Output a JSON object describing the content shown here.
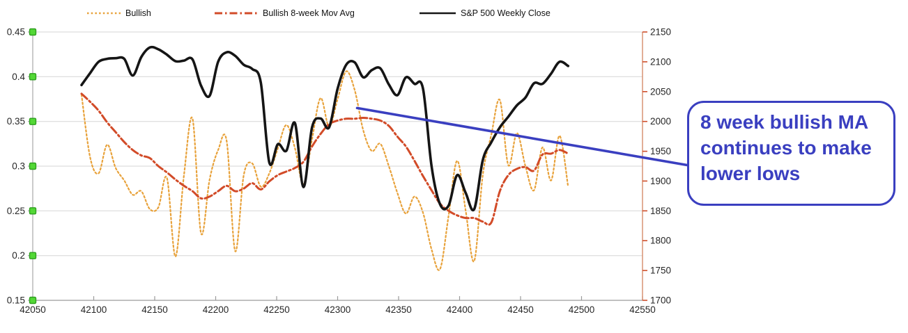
{
  "legend": [
    {
      "label": "Bullish",
      "color": "#E8A23B",
      "style": "dotted"
    },
    {
      "label": "Bullish 8-week Mov Avg",
      "color": "#D24B28",
      "style": "dash-dot"
    },
    {
      "label": "S&P 500 Weekly Close",
      "color": "#151515",
      "style": "solid"
    }
  ],
  "annotation": {
    "text": "8 week bullish MA continues to make lower lows",
    "color": "#3A3FC0",
    "points_at": {
      "x": 42316,
      "left_value": 0.365
    }
  },
  "chart_data": {
    "type": "line",
    "title": "",
    "xlabel": "",
    "ylabel_left": "",
    "ylabel_right": "",
    "grid": "horizontal",
    "legend_position": "top",
    "x_axis": {
      "min": 42050,
      "max": 42550,
      "ticks": [
        42050,
        42100,
        42150,
        42200,
        42250,
        42300,
        42350,
        42400,
        42450,
        42500,
        42550
      ],
      "tick_labels": [
        "42050",
        "42100",
        "42150",
        "42200",
        "42250",
        "42300",
        "42350",
        "42400",
        "42450",
        "42500",
        "42550"
      ]
    },
    "left_axis": {
      "min": 0.15,
      "max": 0.45,
      "ticks": [
        0.45,
        0.4,
        0.35,
        0.3,
        0.25,
        0.2,
        0.15
      ],
      "tick_labels": [
        "0.45",
        "0.4",
        "0.35",
        "0.3",
        "0.25",
        "0.2",
        "0.15"
      ],
      "marker": "green-square",
      "marker_fill": "#53D836",
      "marker_stroke": "#2E9E1F"
    },
    "right_axis": {
      "min": 1700,
      "max": 2150,
      "ticks": [
        2150,
        2100,
        2050,
        2000,
        1950,
        1900,
        1850,
        1800,
        1750,
        1700
      ],
      "tick_labels": [
        "2150",
        "2100",
        "2050",
        "2000",
        "1950",
        "1900",
        "1850",
        "1800",
        "1750",
        "1700"
      ],
      "line_color": "#D2825F",
      "tick_color": "#CF4E2B"
    },
    "x": [
      42090,
      42097,
      42104,
      42111,
      42118,
      42125,
      42132,
      42139,
      42146,
      42153,
      42160,
      42167,
      42174,
      42181,
      42188,
      42195,
      42202,
      42209,
      42216,
      42223,
      42230,
      42237,
      42244,
      42251,
      42258,
      42265,
      42272,
      42279,
      42286,
      42293,
      42300,
      42307,
      42314,
      42321,
      42328,
      42335,
      42342,
      42349,
      42356,
      42363,
      42370,
      42377,
      42384,
      42391,
      42398,
      42405,
      42412,
      42419,
      42426,
      42433,
      42440,
      42447,
      42454,
      42461,
      42468,
      42475,
      42482,
      42489
    ],
    "series": [
      {
        "name": "Bullish",
        "axis": "left",
        "color": "#E8A23B",
        "style": "dotted",
        "width": 2.2,
        "values": [
          0.38,
          0.31,
          0.292,
          0.324,
          0.298,
          0.284,
          0.268,
          0.272,
          0.252,
          0.254,
          0.287,
          0.199,
          0.29,
          0.353,
          0.225,
          0.285,
          0.318,
          0.328,
          0.205,
          0.29,
          0.303,
          0.277,
          0.292,
          0.32,
          0.346,
          0.32,
          0.28,
          0.33,
          0.376,
          0.344,
          0.375,
          0.406,
          0.385,
          0.34,
          0.317,
          0.325,
          0.3,
          0.27,
          0.247,
          0.266,
          0.248,
          0.207,
          0.185,
          0.245,
          0.306,
          0.25,
          0.194,
          0.29,
          0.335,
          0.374,
          0.301,
          0.337,
          0.3,
          0.273,
          0.321,
          0.284,
          0.334,
          0.277
        ]
      },
      {
        "name": "Bullish 8-week Mov Avg",
        "axis": "left",
        "color": "#D24B28",
        "style": "dash-dot",
        "width": 3,
        "values": [
          0.381,
          0.372,
          0.362,
          0.349,
          0.338,
          0.327,
          0.318,
          0.312,
          0.309,
          0.3,
          0.293,
          0.285,
          0.278,
          0.272,
          0.264,
          0.266,
          0.272,
          0.278,
          0.272,
          0.275,
          0.281,
          0.274,
          0.283,
          0.29,
          0.294,
          0.298,
          0.305,
          0.322,
          0.336,
          0.347,
          0.351,
          0.353,
          0.353,
          0.354,
          0.353,
          0.351,
          0.345,
          0.333,
          0.322,
          0.306,
          0.289,
          0.273,
          0.258,
          0.25,
          0.245,
          0.242,
          0.242,
          0.238,
          0.237,
          0.272,
          0.29,
          0.297,
          0.299,
          0.295,
          0.313,
          0.314,
          0.318,
          0.314
        ]
      },
      {
        "name": "S&P 500 Weekly Close",
        "axis": "right",
        "color": "#151515",
        "style": "solid",
        "width": 3.6,
        "values": [
          2061,
          2081,
          2100,
          2105,
          2106,
          2105,
          2077,
          2108,
          2124,
          2121,
          2112,
          2101,
          2102,
          2104,
          2060,
          2043,
          2100,
          2116,
          2110,
          2095,
          2088,
          2065,
          1931,
          1962,
          1951,
          1997,
          1890,
          1990,
          2005,
          1990,
          2055,
          2095,
          2099,
          2074,
          2086,
          2089,
          2062,
          2044,
          2074,
          2063,
          2055,
          1925,
          1861,
          1859,
          1910,
          1880,
          1853,
          1935,
          1965,
          1990,
          2008,
          2027,
          2040,
          2064,
          2063,
          2080,
          2100,
          2093
        ]
      }
    ]
  }
}
